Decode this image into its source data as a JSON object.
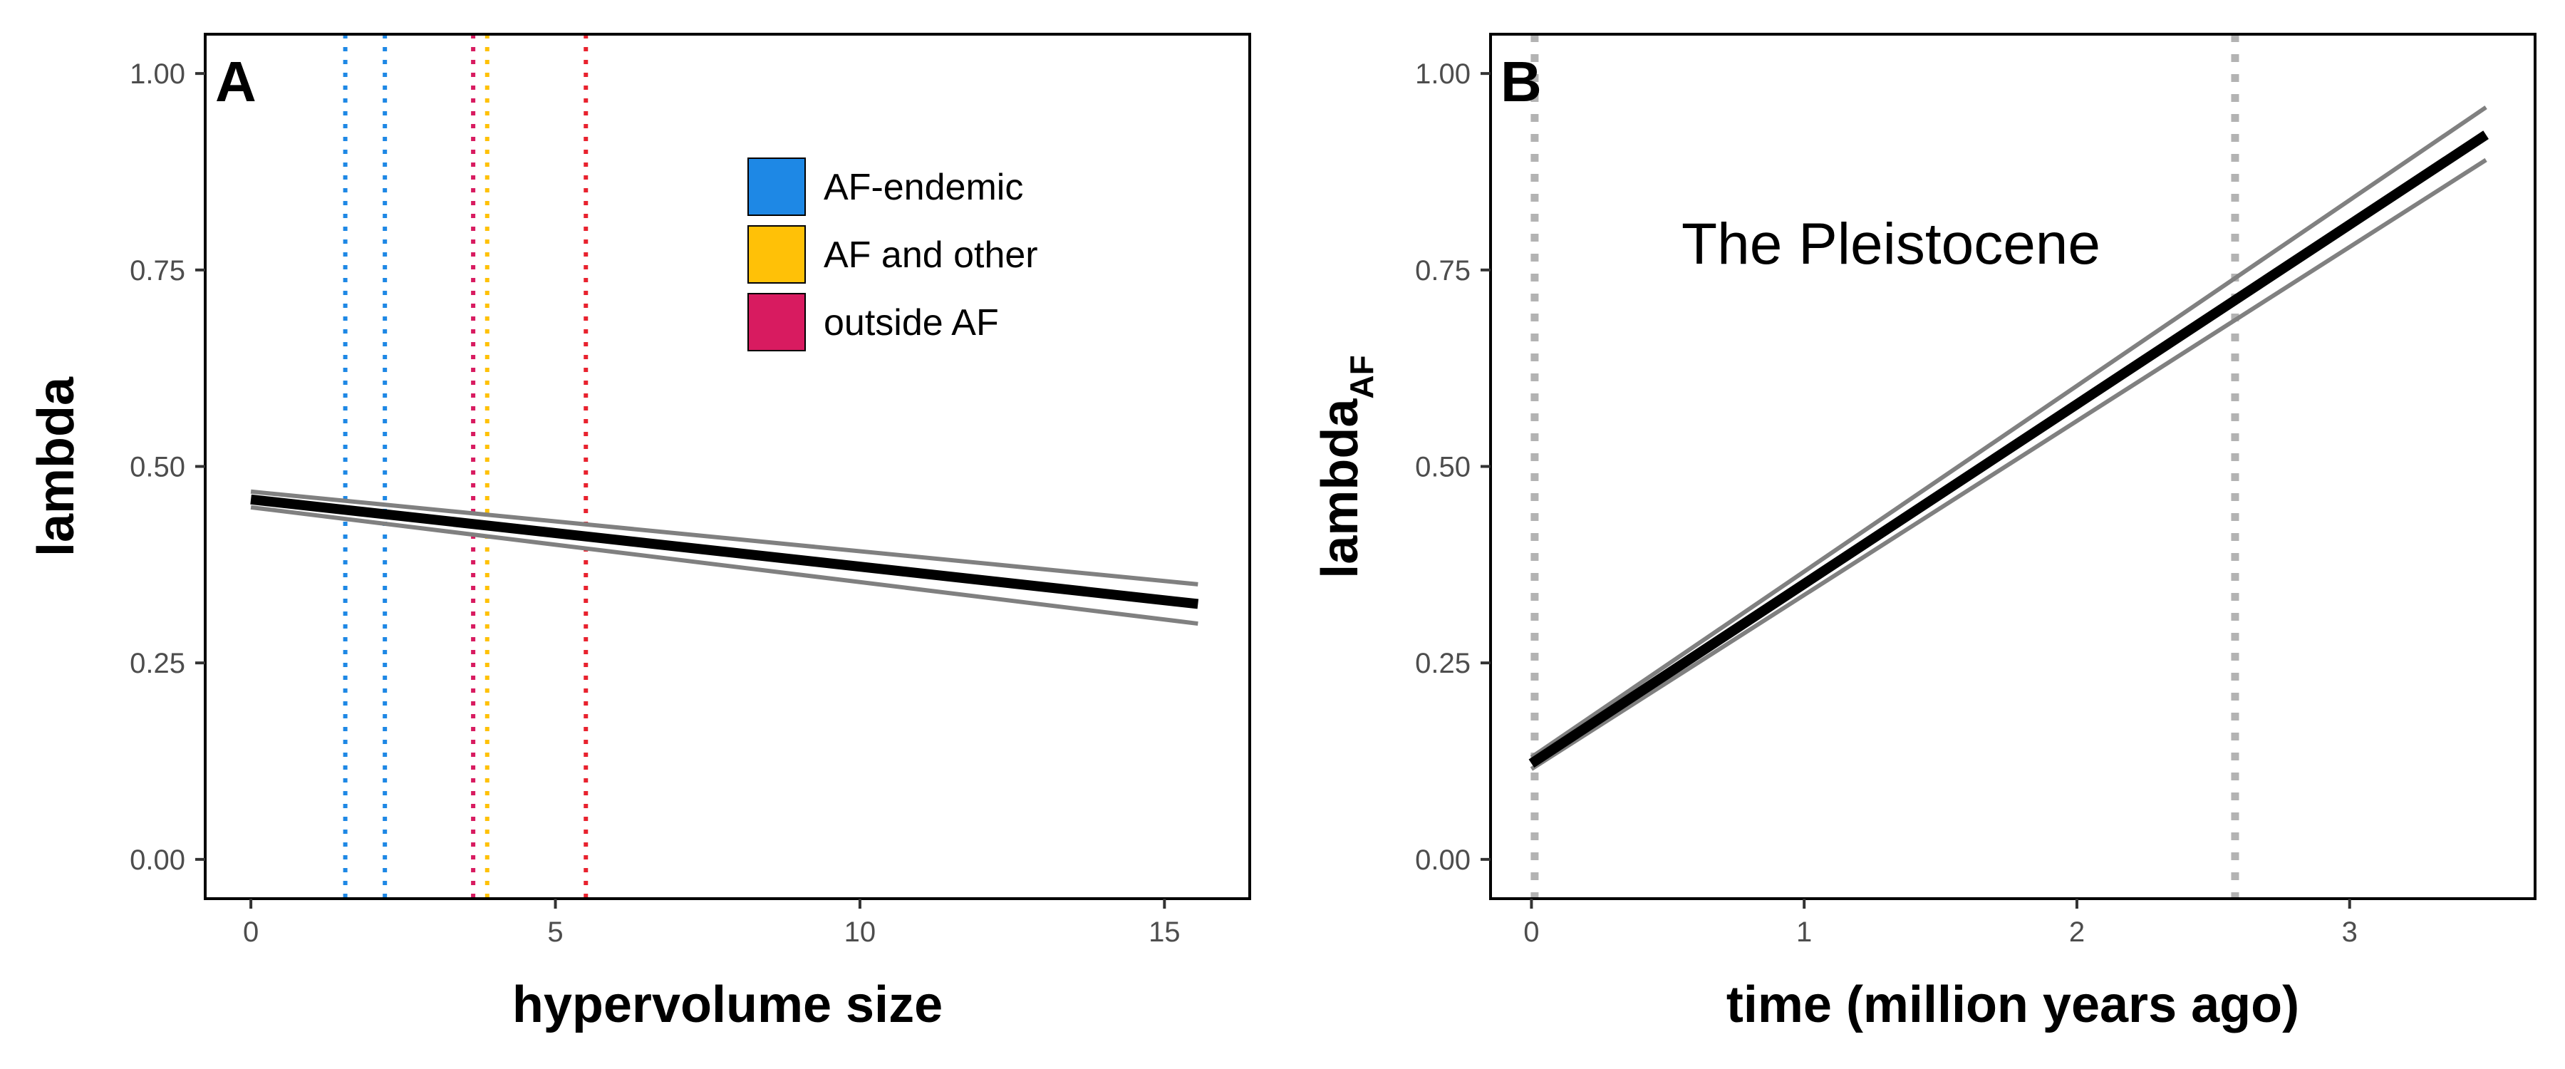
{
  "chart_data": [
    {
      "panel": "A",
      "type": "line",
      "xlabel": "hypervolume size",
      "ylabel": "lambda",
      "xlim": [
        -0.75,
        16.4
      ],
      "ylim": [
        -0.05,
        1.05
      ],
      "xticks": [
        0,
        5,
        10,
        15
      ],
      "yticks": [
        0.0,
        0.25,
        0.5,
        0.75,
        1.0
      ],
      "xtick_labels": [
        "0",
        "5",
        "10",
        "15"
      ],
      "ytick_labels": [
        "0.00",
        "0.25",
        "0.50",
        "0.75",
        "1.00"
      ],
      "grid": false,
      "legend_position": "top-right",
      "legend": [
        {
          "label": "AF-endemic",
          "color": "#1e88e5"
        },
        {
          "label": "AF and other",
          "color": "#ffc107"
        },
        {
          "label": "outside AF",
          "color": "#d81b60"
        }
      ],
      "series": [
        {
          "role": "fit",
          "color": "#000000",
          "x": [
            0,
            15.55
          ],
          "y": [
            0.458,
            0.325
          ]
        },
        {
          "role": "upper",
          "color": "#808080",
          "x": [
            0,
            15.55
          ],
          "y": [
            0.468,
            0.35
          ]
        },
        {
          "role": "lower",
          "color": "#808080",
          "x": [
            0,
            15.55
          ],
          "y": [
            0.448,
            0.3
          ]
        }
      ],
      "vlines": [
        {
          "x": 1.55,
          "color": "#1e88e5",
          "style": "dotted"
        },
        {
          "x": 2.2,
          "color": "#1e88e5",
          "style": "dotted"
        },
        {
          "x": 3.65,
          "color": "#d81b60",
          "style": "dotted"
        },
        {
          "x": 3.88,
          "color": "#ffc107",
          "style": "dotted"
        },
        {
          "x": 5.5,
          "color": "#e8222e",
          "style": "dotted"
        }
      ]
    },
    {
      "panel": "B",
      "type": "line",
      "xlabel": "time (million years ago)",
      "ylabel": "lambda",
      "ylabel_subscript": "AF",
      "annotation": "The Pleistocene",
      "xlim": [
        -0.15,
        3.68
      ],
      "ylim": [
        -0.05,
        1.05
      ],
      "xticks": [
        0,
        1,
        2,
        3
      ],
      "yticks": [
        0.0,
        0.25,
        0.5,
        0.75,
        1.0
      ],
      "xtick_labels": [
        "0",
        "1",
        "2",
        "3"
      ],
      "ytick_labels": [
        "0.00",
        "0.25",
        "0.50",
        "0.75",
        "1.00"
      ],
      "grid": false,
      "series": [
        {
          "role": "fit",
          "color": "#000000",
          "x": [
            0,
            3.5
          ],
          "y": [
            0.122,
            0.922
          ]
        },
        {
          "role": "upper",
          "color": "#808080",
          "x": [
            0,
            3.5
          ],
          "y": [
            0.13,
            0.957
          ]
        },
        {
          "role": "lower",
          "color": "#808080",
          "x": [
            0,
            3.5
          ],
          "y": [
            0.115,
            0.89
          ]
        }
      ],
      "vlines": [
        {
          "x": 0.0117,
          "color": "#b3b3b3",
          "style": "dotted"
        },
        {
          "x": 2.58,
          "color": "#b3b3b3",
          "style": "dotted"
        }
      ]
    }
  ]
}
